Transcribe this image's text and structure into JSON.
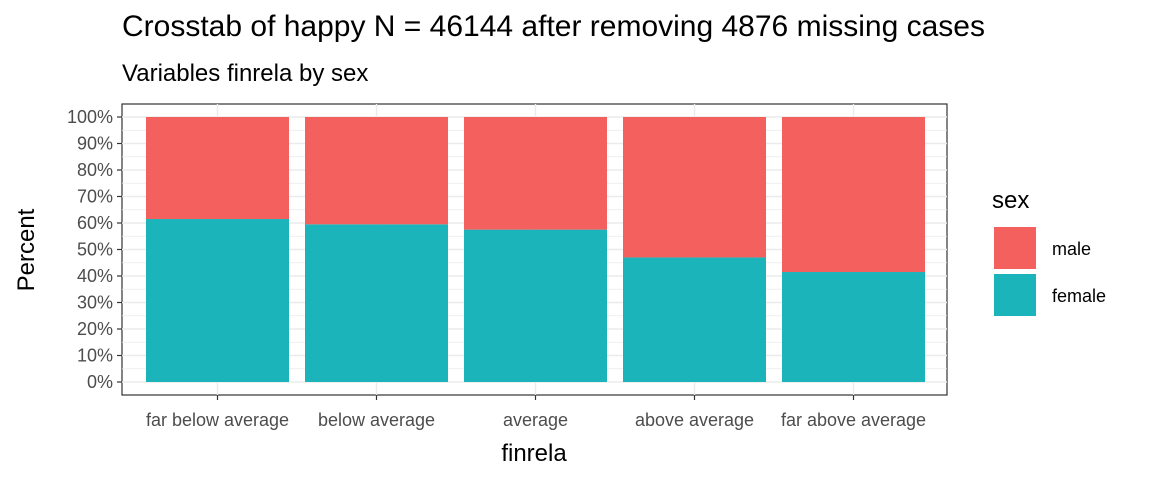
{
  "chart_data": {
    "type": "bar",
    "stacked": true,
    "title": "Crosstab of happy N = 46144 after removing 4876 missing cases",
    "subtitle": "Variables finrela by sex",
    "xlabel": "finrela",
    "ylabel": "Percent",
    "ylim": [
      0,
      100
    ],
    "yticks": [
      "0%",
      "10%",
      "20%",
      "30%",
      "40%",
      "50%",
      "60%",
      "70%",
      "80%",
      "90%",
      "100%"
    ],
    "categories": [
      "far below average",
      "below average",
      "average",
      "above average",
      "far above average"
    ],
    "series": [
      {
        "name": "female",
        "color": "#1AB4BA",
        "values": [
          61.5,
          59.5,
          57.5,
          47.0,
          41.5
        ]
      },
      {
        "name": "male",
        "color": "#F3605D",
        "values": [
          38.5,
          40.5,
          42.5,
          53.0,
          58.5
        ]
      }
    ],
    "legend": {
      "title": "sex",
      "position": "right",
      "entries": [
        "male",
        "female"
      ]
    },
    "grid": true
  }
}
